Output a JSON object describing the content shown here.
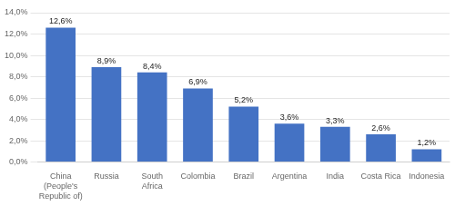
{
  "chart_data": {
    "type": "bar",
    "categories": [
      "China\n(People's\nRepublic of)",
      "Russia",
      "South\nAfrica",
      "Colombia",
      "Brazil",
      "Argentina",
      "India",
      "Costa Rica",
      "Indonesia"
    ],
    "values": [
      12.6,
      8.9,
      8.4,
      6.9,
      5.2,
      3.6,
      3.3,
      2.6,
      1.2
    ],
    "value_labels": [
      "12,6%",
      "8,9%",
      "8,4%",
      "6,9%",
      "5,2%",
      "3,6%",
      "3,3%",
      "2,6%",
      "1,2%"
    ],
    "data_labels": true,
    "color": "#4472C4",
    "ylim": [
      0,
      14
    ],
    "yticks": [
      {
        "value": 0,
        "label": "0,0%"
      },
      {
        "value": 2,
        "label": "2,0%"
      },
      {
        "value": 4,
        "label": "4,0%"
      },
      {
        "value": 6,
        "label": "6,0%"
      },
      {
        "value": 8,
        "label": "8,0%"
      },
      {
        "value": 10,
        "label": "10,0%"
      },
      {
        "value": 12,
        "label": "12,0%"
      },
      {
        "value": 14,
        "label": "14,0%"
      }
    ],
    "grid": true
  }
}
